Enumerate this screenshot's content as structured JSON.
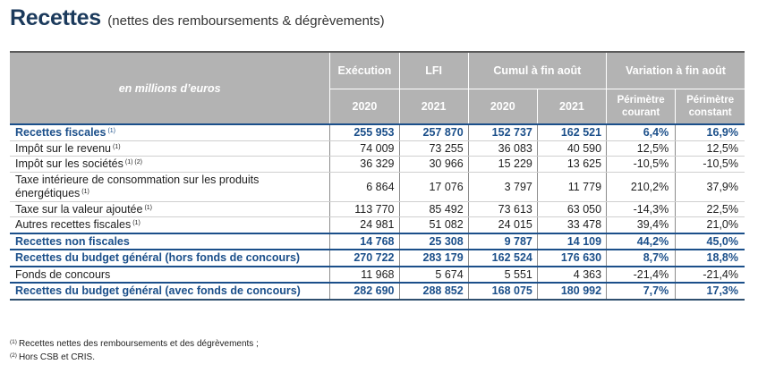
{
  "title": {
    "main": "Recettes",
    "subtitle": "(nettes des remboursements & dégrèvements)"
  },
  "header": {
    "corner": "en millions d’euros",
    "groups": {
      "execution": "Exécution",
      "lfi": "LFI",
      "cumul": "Cumul à fin août",
      "variation": "Variation à fin août"
    },
    "sub": {
      "execution_year": "2020",
      "lfi_year": "2021",
      "cumul_2020": "2020",
      "cumul_2021": "2021",
      "perimetre_courant_1": "Périmètre",
      "perimetre_courant_2": "courant",
      "perimetre_constant_1": "Périmètre",
      "perimetre_constant_2": "constant"
    }
  },
  "rows": [
    {
      "label": "Recettes fiscales",
      "note": "(1)",
      "execution_2020": "255 953",
      "lfi_2021": "257 870",
      "cumul_2020": "152 737",
      "cumul_2021": "162 521",
      "var_courant": "6,4%",
      "var_constant": "16,9%"
    },
    {
      "label": "Impôt sur le revenu",
      "note": "(1)",
      "execution_2020": "74 009",
      "lfi_2021": "73 255",
      "cumul_2020": "36 083",
      "cumul_2021": "40 590",
      "var_courant": "12,5%",
      "var_constant": "12,5%"
    },
    {
      "label": "Impôt sur les sociétés",
      "note": "(1) (2)",
      "execution_2020": "36 329",
      "lfi_2021": "30 966",
      "cumul_2020": "15 229",
      "cumul_2021": "13 625",
      "var_courant": "-10,5%",
      "var_constant": "-10,5%"
    },
    {
      "label": "Taxe intérieure de consommation sur les produits énergétiques",
      "note": "(1)",
      "execution_2020": "6 864",
      "lfi_2021": "17 076",
      "cumul_2020": "3 797",
      "cumul_2021": "11 779",
      "var_courant": "210,2%",
      "var_constant": "37,9%"
    },
    {
      "label": "Taxe sur la valeur ajoutée",
      "note": "(1)",
      "execution_2020": "113 770",
      "lfi_2021": "85 492",
      "cumul_2020": "73 613",
      "cumul_2021": "63 050",
      "var_courant": "-14,3%",
      "var_constant": "22,5%"
    },
    {
      "label": "Autres recettes fiscales",
      "note": "(1)",
      "execution_2020": "24 981",
      "lfi_2021": "51 082",
      "cumul_2020": "24 015",
      "cumul_2021": "33 478",
      "var_courant": "39,4%",
      "var_constant": "21,0%"
    },
    {
      "label": "Recettes non fiscales",
      "note": "",
      "execution_2020": "14 768",
      "lfi_2021": "25 308",
      "cumul_2020": "9 787",
      "cumul_2021": "14 109",
      "var_courant": "44,2%",
      "var_constant": "45,0%"
    },
    {
      "label": "Recettes du budget général (hors fonds de concours)",
      "note": "",
      "execution_2020": "270 722",
      "lfi_2021": "283 179",
      "cumul_2020": "162 524",
      "cumul_2021": "176 630",
      "var_courant": "8,7%",
      "var_constant": "18,8%"
    },
    {
      "label": "Fonds de concours",
      "note": "",
      "execution_2020": "11 968",
      "lfi_2021": "5 674",
      "cumul_2020": "5 551",
      "cumul_2021": "4 363",
      "var_courant": "-21,4%",
      "var_constant": "-21,4%"
    },
    {
      "label": "Recettes du budget général (avec fonds de concours)",
      "note": "",
      "execution_2020": "282 690",
      "lfi_2021": "288 852",
      "cumul_2020": "168 075",
      "cumul_2021": "180 992",
      "var_courant": "7,7%",
      "var_constant": "17,3%"
    }
  ],
  "footnotes": [
    {
      "mark": "(1)",
      "text": "Recettes nettes des remboursements et des dégrèvements ;"
    },
    {
      "mark": "(2)",
      "text": "Hors CSB et CRIS."
    }
  ],
  "colors": {
    "title": "#1b3a5c",
    "header_bg": "#b3b3b3",
    "emphasis": "#1b4f8a"
  }
}
